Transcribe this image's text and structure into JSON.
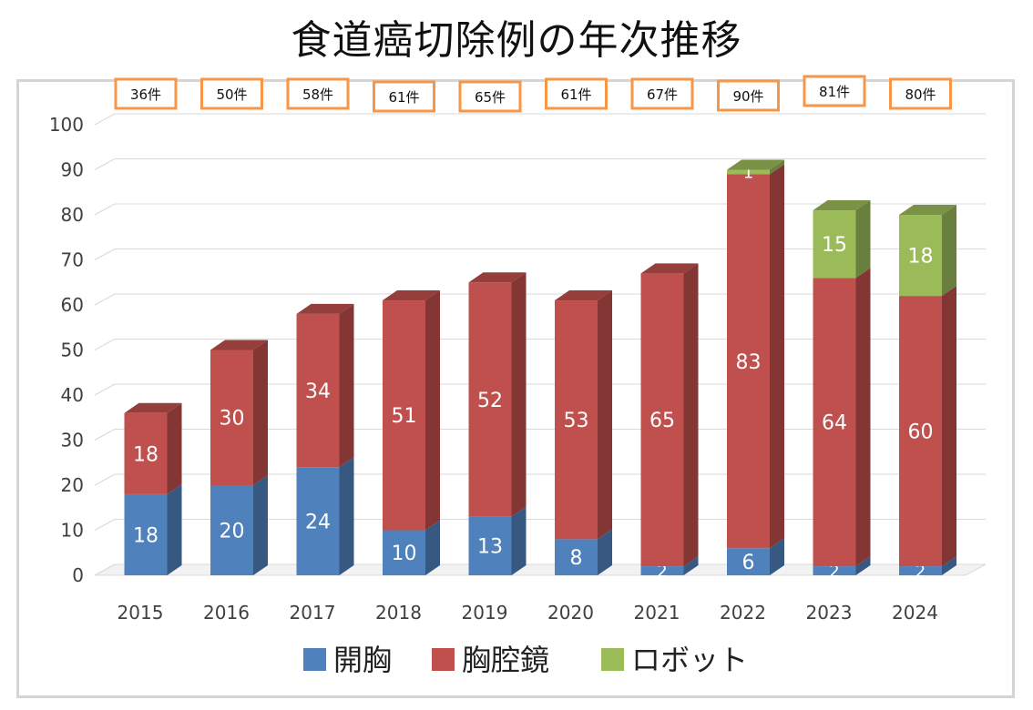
{
  "title": "食道癌切除例の年次推移",
  "chart_data": {
    "type": "bar",
    "stacked": true,
    "three_d": true,
    "title": "食道癌切除例の年次推移",
    "categories": [
      "2015",
      "2016",
      "2017",
      "2018",
      "2019",
      "2020",
      "2021",
      "2022",
      "2023",
      "2024"
    ],
    "totals": [
      "36件",
      "50件",
      "58件",
      "61件",
      "65件",
      "61件",
      "67件",
      "90件",
      "81件",
      "80件"
    ],
    "series": [
      {
        "name": "開胸",
        "color": "#4f81bd",
        "values": [
          18,
          20,
          24,
          10,
          13,
          8,
          2,
          6,
          2,
          2
        ]
      },
      {
        "name": "胸腔鏡",
        "color": "#c0504d",
        "values": [
          18,
          30,
          34,
          51,
          52,
          53,
          65,
          83,
          64,
          60
        ]
      },
      {
        "name": "ロボット",
        "color": "#9bbb59",
        "values": [
          0,
          0,
          0,
          0,
          0,
          0,
          0,
          1,
          15,
          18
        ]
      }
    ],
    "ylim": [
      0,
      100
    ],
    "yticks": [
      0,
      10,
      20,
      30,
      40,
      50,
      60,
      70,
      80,
      90,
      100
    ],
    "grid": true,
    "legend_position": "bottom"
  }
}
